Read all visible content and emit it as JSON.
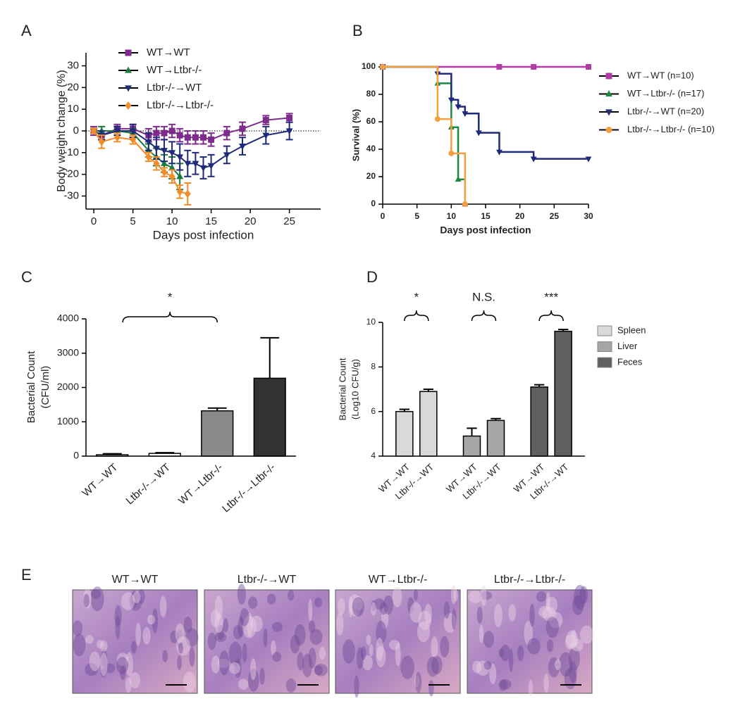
{
  "chart_data": [
    {
      "panel": "A",
      "type": "line",
      "xlabel": "Days post infection",
      "ylabel": "Body weight change (%)",
      "xlim": [
        -1,
        29
      ],
      "ylim": [
        -36,
        36
      ],
      "xticks": [
        0,
        5,
        10,
        15,
        20,
        25
      ],
      "yticks": [
        -30,
        -20,
        -10,
        0,
        10,
        20,
        30
      ],
      "series": [
        {
          "name": "WT→WT",
          "color": "#7d2c8c",
          "marker": "square",
          "x": [
            0,
            1,
            3,
            5,
            7,
            8,
            9,
            10,
            11,
            12,
            13,
            14,
            15,
            17,
            19,
            22,
            25
          ],
          "values": [
            0,
            -2,
            1,
            1,
            -2,
            -1,
            -1,
            0,
            -2,
            -3,
            -3,
            -3,
            -4,
            -1,
            1,
            5,
            6
          ],
          "errors": [
            2,
            2,
            2,
            2,
            3,
            3,
            3,
            3,
            3,
            3,
            3,
            3,
            3,
            3,
            3,
            2,
            2
          ]
        },
        {
          "name": "WT→Ltbr-/-",
          "color": "#1c7a3c",
          "marker": "triangle-up",
          "x": [
            0,
            1,
            3,
            5,
            7,
            8,
            9,
            10,
            11
          ],
          "values": [
            0,
            0,
            0,
            -1,
            -9,
            -12,
            -15,
            -17,
            -21
          ],
          "errors": [
            1,
            2,
            2,
            2,
            3,
            4,
            4,
            5,
            6
          ]
        },
        {
          "name": "Ltbr-/-→WT",
          "color": "#1f2a7a",
          "marker": "triangle-down",
          "x": [
            0,
            1,
            3,
            5,
            7,
            8,
            9,
            10,
            11,
            12,
            13,
            14,
            15,
            17,
            19,
            22,
            25
          ],
          "values": [
            0,
            -2,
            0,
            0,
            -5,
            -8,
            -9,
            -10,
            -12,
            -15,
            -15,
            -17,
            -16,
            -11,
            -7,
            -2,
            0
          ],
          "errors": [
            1,
            2,
            2,
            3,
            4,
            5,
            5,
            5,
            6,
            6,
            5,
            5,
            5,
            4,
            4,
            4,
            4
          ]
        },
        {
          "name": "Ltbr-/-→Ltbr-/-",
          "color": "#f28c28",
          "marker": "diamond",
          "x": [
            0,
            1,
            3,
            5,
            7,
            8,
            9,
            10,
            11,
            12
          ],
          "values": [
            0,
            -5,
            -3,
            -4,
            -12,
            -15,
            -19,
            -21,
            -28,
            -29
          ],
          "errors": [
            1,
            3,
            2,
            2,
            2,
            3,
            2,
            3,
            3,
            5
          ]
        }
      ]
    },
    {
      "panel": "B",
      "type": "line",
      "step": true,
      "xlabel": "Days post infection",
      "ylabel": "Survival (%)",
      "xlim": [
        0,
        30
      ],
      "ylim": [
        0,
        100
      ],
      "xticks": [
        0,
        5,
        10,
        15,
        20,
        25,
        30
      ],
      "yticks": [
        0,
        20,
        40,
        60,
        80,
        100
      ],
      "series": [
        {
          "name": "WT→WT (n=10)",
          "color": "#b43aa5",
          "marker": "square",
          "x": [
            0,
            17,
            22,
            30
          ],
          "values": [
            100,
            100,
            100,
            100
          ]
        },
        {
          "name": "WT→Ltbr-/- (n=17)",
          "color": "#1c8a3c",
          "marker": "triangle-up",
          "x": [
            0,
            8,
            10,
            11,
            12
          ],
          "values": [
            100,
            88,
            56,
            18,
            0
          ]
        },
        {
          "name": "Ltbr-/-→WT (n=20)",
          "color": "#1f2a7a",
          "marker": "triangle-down",
          "x": [
            0,
            8,
            10,
            11,
            12,
            14,
            17,
            22,
            30
          ],
          "values": [
            100,
            95,
            76,
            71,
            66,
            52,
            38,
            33,
            33
          ]
        },
        {
          "name": "Ltbr-/-→Ltbr-/- (n=10)",
          "color": "#f5a040",
          "marker": "circle",
          "x": [
            0,
            8,
            10,
            12
          ],
          "values": [
            100,
            62,
            37,
            0
          ]
        }
      ]
    },
    {
      "panel": "C",
      "type": "bar",
      "ylabel": [
        "Bacterial Count",
        "(CFU/ml)"
      ],
      "categories": [
        "WT→WT",
        "Ltbr-/-→WT",
        "WT→Ltbr-/-",
        "Ltbr-/-→Ltbr-/-"
      ],
      "values": [
        40,
        80,
        1320,
        2270
      ],
      "errors": [
        30,
        20,
        80,
        1180
      ],
      "colors": [
        "#ffffff",
        "#ffffff",
        "#8a8a8a",
        "#333333"
      ],
      "ylim": [
        0,
        4000
      ],
      "yticks": [
        0,
        1000,
        2000,
        3000,
        4000
      ],
      "annotation": "*"
    },
    {
      "panel": "D",
      "type": "bar",
      "ylabel": [
        "Bacterial Count",
        "(Log10 CFU/g)"
      ],
      "categories": [
        "WT→WT",
        "Ltbr-/-→WT"
      ],
      "series": [
        {
          "name": "Spleen",
          "color": "#d9d9d9",
          "values": [
            6.0,
            6.9
          ],
          "errors": [
            0.1,
            0.1
          ]
        },
        {
          "name": "Liver",
          "color": "#a6a6a6",
          "values": [
            4.9,
            5.6
          ],
          "errors": [
            0.35,
            0.08
          ]
        },
        {
          "name": "Feces",
          "color": "#5f5f5f",
          "values": [
            7.1,
            9.6
          ],
          "errors": [
            0.1,
            0.08
          ]
        }
      ],
      "ylim": [
        4,
        10
      ],
      "yticks": [
        4,
        6,
        8,
        10
      ],
      "annotations": [
        "*",
        "N.S.",
        "***"
      ]
    }
  ],
  "panel_e": {
    "label": "E",
    "titles": [
      "WT→WT",
      "Ltbr-/-→WT",
      "WT→Ltbr-/-",
      "Ltbr-/-→Ltbr-/-"
    ]
  }
}
